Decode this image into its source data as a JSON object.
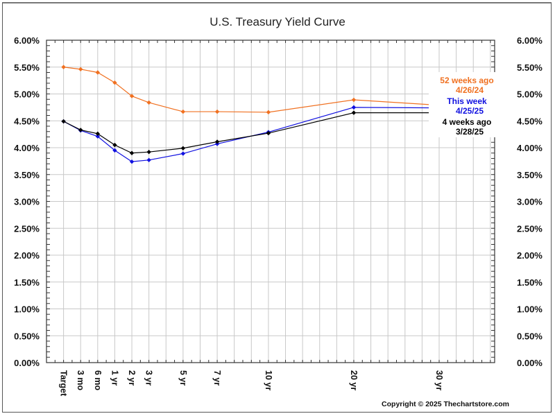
{
  "chart_data": {
    "type": "line",
    "title": "U.S. Treasury Yield Curve",
    "xlabel": "",
    "ylabel": "",
    "ylim": [
      0,
      6
    ],
    "y_tick_step": 0.5,
    "y_tick_labels": [
      "0.00%",
      "0.50%",
      "1.00%",
      "1.50%",
      "2.00%",
      "2.50%",
      "3.00%",
      "3.50%",
      "4.00%",
      "4.50%",
      "5.00%",
      "5.50%",
      "6.00%"
    ],
    "y_axis_both_sides": true,
    "grid": true,
    "categories": [
      "Target",
      "3 mo",
      "6 mo",
      "1 yr",
      "2 yr",
      "3 yr",
      "5 yr",
      "7 yr",
      "10 yr",
      "20 yr",
      "30 yr"
    ],
    "x_slots": [
      1,
      2,
      3,
      4,
      5,
      6,
      8,
      10,
      13,
      18,
      23
    ],
    "x_slot_range": [
      0,
      26.25
    ],
    "series": [
      {
        "name": "52 weeks ago",
        "date": "4/26/24",
        "color": "#f07020",
        "values": [
          5.5,
          5.46,
          5.4,
          5.21,
          4.96,
          4.84,
          4.67,
          4.67,
          4.66,
          4.89,
          4.79
        ]
      },
      {
        "name": "This week",
        "date": "4/25/25",
        "color": "#1010e0",
        "values": [
          4.49,
          4.32,
          4.21,
          3.95,
          3.74,
          3.77,
          3.89,
          4.07,
          4.29,
          4.75,
          4.74
        ]
      },
      {
        "name": "4 weeks ago",
        "date": "3/28/25",
        "color": "#000000",
        "values": [
          4.49,
          4.33,
          4.26,
          4.05,
          3.9,
          3.92,
          3.99,
          4.11,
          4.27,
          4.65,
          4.65
        ]
      }
    ],
    "legend_placement": "right",
    "annotations": [
      "Copyright © 2025 Thechartstore.com"
    ]
  },
  "copyright": "Copyright © 2025 Thechartstore.com"
}
